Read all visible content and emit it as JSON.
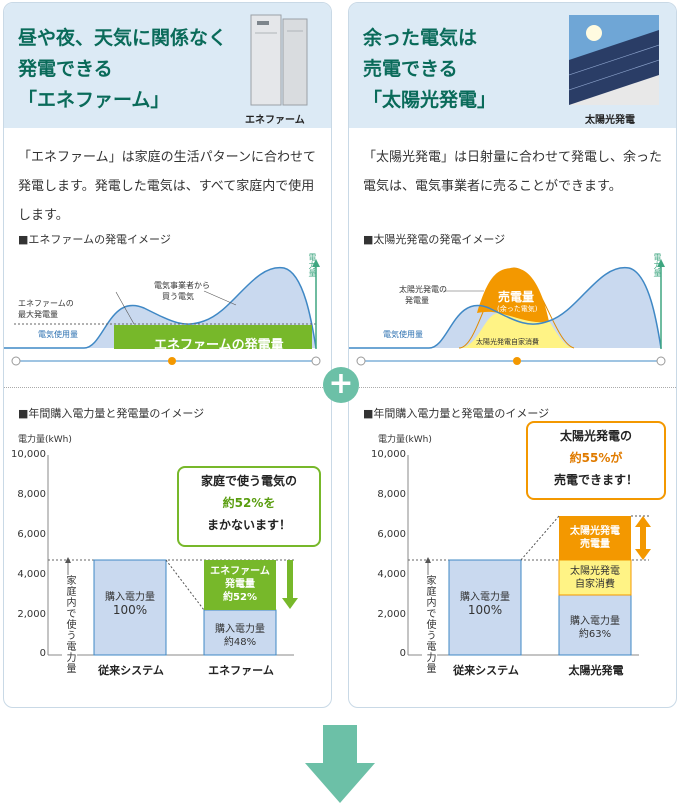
{
  "left": {
    "title_lines": [
      "昼や夜、天気に関係なく",
      "発電できる",
      "「エネファーム」"
    ],
    "product_caption": "エネファーム",
    "description": "「エネファーム」は家庭の生活パターンに合わせて発電します。発電した電気は、すべて家庭内で使用します。",
    "image1_title": "■エネファームの発電イメージ",
    "image1": {
      "max_gen_label": [
        "エネファームの",
        "最大発電量"
      ],
      "purchase_label": [
        "電気事業者から",
        "買う電気"
      ],
      "usage_label": "電気使用量",
      "gen_label": "エネファームの発電量",
      "power_axis": "電力量"
    },
    "image2_title": "■年間購入電力量と発電量のイメージ",
    "chart": {
      "unit_label": "電力量(kWh)",
      "ticks": [
        "10,000",
        "8,000",
        "6,000",
        "4,000",
        "2,000",
        "0"
      ],
      "bar1_label": "購入電力量",
      "bar1_pct": "100%",
      "bar2_top_label": [
        "エネファーム",
        "発電量",
        "約52%"
      ],
      "bar2_bottom_label": [
        "購入電力量",
        "約48%"
      ],
      "household_label": "家庭内で使う電力量",
      "x1": "従来システム",
      "x2": "エネファーム",
      "callout": [
        "家庭で使う電気の",
        "約52%を",
        "まかないます！"
      ]
    }
  },
  "right": {
    "title_lines": [
      "余った電気は",
      "売電できる",
      "「太陽光発電」"
    ],
    "product_caption": "太陽光発電",
    "description": "「太陽光発電」は日射量に合わせて発電し、余った電気は、電気事業者に売ることができます。",
    "image1_title": "■太陽光発電の発電イメージ",
    "image1": {
      "solar_label": [
        "太陽光発電の",
        "発電量"
      ],
      "sell_label": "売電量",
      "sell_sub": "(余った電気)",
      "self_label": "太陽光発電自家消費",
      "usage_label": "電気使用量",
      "power_axis": "電力量"
    },
    "image2_title": "■年間購入電力量と発電量のイメージ",
    "chart": {
      "unit_label": "電力量(kWh)",
      "ticks": [
        "10,000",
        "8,000",
        "6,000",
        "4,000",
        "2,000",
        "0"
      ],
      "bar1_label": "購入電力量",
      "bar1_pct": "100%",
      "bar2_sell_label": [
        "太陽光発電",
        "売電量"
      ],
      "bar2_self_label": [
        "太陽光発電",
        "自家消費"
      ],
      "bar2_bottom_label": [
        "購入電力量",
        "約63%"
      ],
      "household_label": "家庭内で使う電力量",
      "x1": "従来システム",
      "x2": "太陽光発電",
      "callout": [
        "太陽光発電の",
        "約55%が",
        "売電できます！"
      ]
    }
  },
  "plus_symbol": "+",
  "colors": {
    "teal": "#0a6b5a",
    "header_bg": "#dceaf5",
    "purchase_blue": "#c9d9ef",
    "enefarm_green": "#77b82a",
    "solar_orange": "#f39800",
    "solar_yellow": "#fff385",
    "arrow": "#6cc0a7"
  }
}
